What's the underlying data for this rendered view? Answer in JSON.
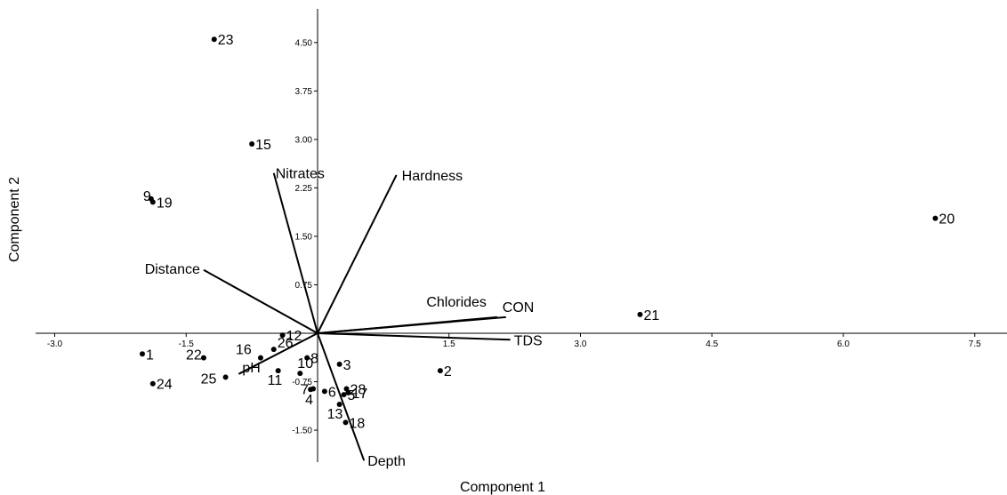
{
  "chart_data": {
    "type": "scatter",
    "title": "",
    "xlabel": "Component 1",
    "ylabel": "Component 2",
    "xlim": [
      -3.0,
      8.0
    ],
    "ylim": [
      -2.0,
      5.0
    ],
    "x_ticks": [
      "-3.0",
      "-1.5",
      "1.5",
      "3.0",
      "4.5",
      "6.0",
      "7.5"
    ],
    "y_ticks": [
      "4.50",
      "3.75",
      "3.00",
      "2.25",
      "1.50",
      "0.75",
      "-0.75",
      "-1.50"
    ],
    "grid": false,
    "points": [
      {
        "label": "1",
        "x": -2.0,
        "y": -0.32
      },
      {
        "label": "2",
        "x": 1.4,
        "y": -0.58
      },
      {
        "label": "3",
        "x": 0.25,
        "y": -0.48
      },
      {
        "label": "4",
        "x": -0.08,
        "y": -0.87
      },
      {
        "label": "5",
        "x": 0.3,
        "y": -0.95
      },
      {
        "label": "6",
        "x": 0.08,
        "y": -0.9
      },
      {
        "label": "7",
        "x": -0.05,
        "y": -0.86
      },
      {
        "label": "8",
        "x": -0.12,
        "y": -0.38
      },
      {
        "label": "9",
        "x": -1.9,
        "y": 2.08
      },
      {
        "label": "10",
        "x": -0.2,
        "y": -0.62
      },
      {
        "label": "11",
        "x": -0.45,
        "y": -0.58
      },
      {
        "label": "12",
        "x": -0.4,
        "y": -0.03
      },
      {
        "label": "13",
        "x": 0.25,
        "y": -1.1
      },
      {
        "label": "15",
        "x": -0.75,
        "y": 2.93
      },
      {
        "label": "16",
        "x": -0.65,
        "y": -0.38
      },
      {
        "label": "17",
        "x": 0.35,
        "y": -0.92
      },
      {
        "label": "18",
        "x": 0.32,
        "y": -1.38
      },
      {
        "label": "19",
        "x": -1.88,
        "y": 2.03
      },
      {
        "label": "20",
        "x": 7.05,
        "y": 1.78
      },
      {
        "label": "21",
        "x": 3.68,
        "y": 0.29
      },
      {
        "label": "22",
        "x": -1.3,
        "y": -0.38
      },
      {
        "label": "23",
        "x": -1.18,
        "y": 4.55
      },
      {
        "label": "24",
        "x": -1.88,
        "y": -0.78
      },
      {
        "label": "25",
        "x": -1.05,
        "y": -0.68
      },
      {
        "label": "26",
        "x": -0.5,
        "y": -0.25
      },
      {
        "label": "28",
        "x": 0.33,
        "y": -0.86
      }
    ],
    "vectors": [
      {
        "label": "Nitrates",
        "x": -0.5,
        "y": 2.48
      },
      {
        "label": "Hardness",
        "x": 0.9,
        "y": 2.45
      },
      {
        "label": "Distance",
        "x": -1.3,
        "y": 0.98
      },
      {
        "label": "Chlorides",
        "x": 2.05,
        "y": 0.25
      },
      {
        "label": "CON",
        "x": 2.15,
        "y": 0.25
      },
      {
        "label": "TDS",
        "x": 2.2,
        "y": -0.1
      },
      {
        "label": "pH",
        "x": -0.9,
        "y": -0.63
      },
      {
        "label": "Depth",
        "x": 0.53,
        "y": -1.97
      }
    ]
  }
}
